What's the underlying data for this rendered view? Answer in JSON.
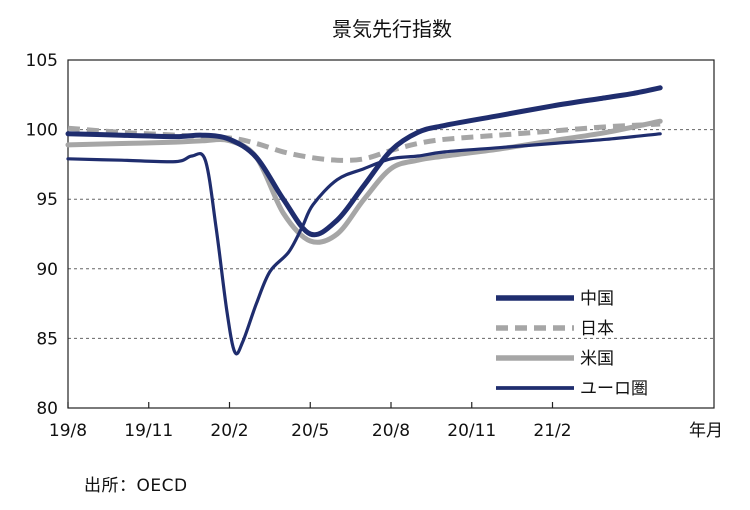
{
  "chart_data": {
    "type": "line",
    "title": "景気先行指数",
    "xlabel": "年月",
    "ylabel": "",
    "ylim": [
      80,
      105
    ],
    "xlim": [
      0,
      24
    ],
    "yticks": [
      80,
      85,
      90,
      95,
      100,
      105
    ],
    "xtick_labels": [
      {
        "x": 0,
        "label": "19/8"
      },
      {
        "x": 3,
        "label": "19/11"
      },
      {
        "x": 6,
        "label": "20/2"
      },
      {
        "x": 9,
        "label": "20/5"
      },
      {
        "x": 12,
        "label": "20/8"
      },
      {
        "x": 15,
        "label": "20/11"
      },
      {
        "x": 18,
        "label": "21/2"
      }
    ],
    "grid": "horizontal dashed",
    "legend_position": "bottom-right",
    "series": [
      {
        "name": "中国",
        "color": "#1f2d6e",
        "style": "solid-thick",
        "points": [
          [
            0,
            99.7
          ],
          [
            2,
            99.6
          ],
          [
            4,
            99.5
          ],
          [
            5,
            99.6
          ],
          [
            6,
            99.3
          ],
          [
            7,
            98
          ],
          [
            8,
            95
          ],
          [
            9,
            92.5
          ],
          [
            10,
            93.5
          ],
          [
            11,
            96
          ],
          [
            12,
            98.5
          ],
          [
            13,
            99.8
          ],
          [
            14,
            100.3
          ],
          [
            16,
            101
          ],
          [
            18,
            101.7
          ],
          [
            20,
            102.3
          ],
          [
            21,
            102.6
          ],
          [
            22,
            103
          ]
        ]
      },
      {
        "name": "日本",
        "color": "#a6a6a6",
        "style": "dashed",
        "points": [
          [
            0,
            100.1
          ],
          [
            2,
            99.8
          ],
          [
            4,
            99.6
          ],
          [
            6,
            99.4
          ],
          [
            7,
            99
          ],
          [
            8,
            98.4
          ],
          [
            9,
            98
          ],
          [
            10,
            97.8
          ],
          [
            11,
            97.9
          ],
          [
            12,
            98.5
          ],
          [
            13,
            99
          ],
          [
            14,
            99.3
          ],
          [
            16,
            99.6
          ],
          [
            18,
            99.9
          ],
          [
            20,
            100.2
          ],
          [
            22,
            100.4
          ]
        ]
      },
      {
        "name": "米国",
        "color": "#a6a6a6",
        "style": "solid-thick",
        "points": [
          [
            0,
            98.9
          ],
          [
            2,
            99
          ],
          [
            4,
            99.1
          ],
          [
            5,
            99.2
          ],
          [
            6,
            99.2
          ],
          [
            7,
            98
          ],
          [
            8,
            94
          ],
          [
            9,
            92
          ],
          [
            10,
            92.5
          ],
          [
            11,
            95
          ],
          [
            12,
            97.2
          ],
          [
            13,
            97.8
          ],
          [
            14,
            98.1
          ],
          [
            16,
            98.6
          ],
          [
            18,
            99.2
          ],
          [
            20,
            99.8
          ],
          [
            22,
            100.6
          ]
        ]
      },
      {
        "name": "ユーロ圏",
        "color": "#1f2d6e",
        "style": "solid-thin",
        "points": [
          [
            0,
            97.9
          ],
          [
            2,
            97.8
          ],
          [
            4,
            97.7
          ],
          [
            4.6,
            98.1
          ],
          [
            5.1,
            97.8
          ],
          [
            5.5,
            93
          ],
          [
            5.9,
            87
          ],
          [
            6.2,
            84
          ],
          [
            6.5,
            84.8
          ],
          [
            7,
            87.5
          ],
          [
            7.5,
            89.8
          ],
          [
            8.2,
            91.2
          ],
          [
            8.7,
            93
          ],
          [
            9.1,
            94.6
          ],
          [
            10,
            96.4
          ],
          [
            11,
            97.2
          ],
          [
            12,
            97.9
          ],
          [
            13,
            98.1
          ],
          [
            14,
            98.4
          ],
          [
            16,
            98.7
          ],
          [
            18,
            99
          ],
          [
            20,
            99.3
          ],
          [
            22,
            99.7
          ]
        ]
      }
    ]
  },
  "source": "出所：OECD"
}
